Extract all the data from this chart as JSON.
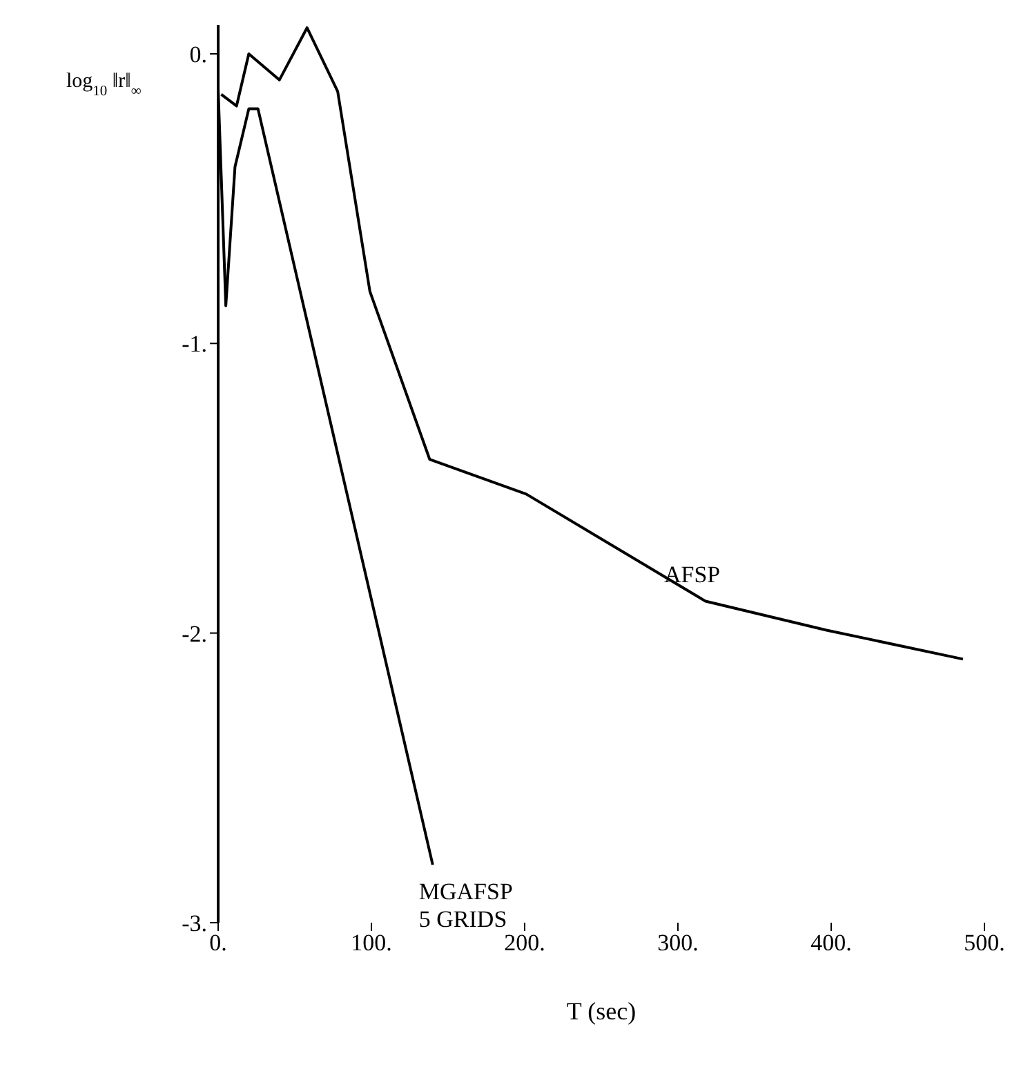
{
  "chart_data": {
    "type": "line",
    "xlabel": "T (sec)",
    "ylabel": "log$_{10}$ ‖r‖$_{∞}$",
    "xlim": [
      0,
      500
    ],
    "xticks": [
      {
        "value": 0,
        "label": "0."
      },
      {
        "value": 100,
        "label": "100."
      },
      {
        "value": 200,
        "label": "200."
      },
      {
        "value": 300,
        "label": "300."
      },
      {
        "value": 400,
        "label": "400."
      },
      {
        "value": 500,
        "label": "500."
      }
    ],
    "ylim": [
      -3,
      0.1
    ],
    "yticks": [
      {
        "value": 0,
        "label": "0."
      },
      {
        "value": -1,
        "label": "-1."
      },
      {
        "value": -2,
        "label": "-2."
      },
      {
        "value": -3,
        "label": "-3."
      }
    ],
    "grid": false,
    "legend": false,
    "marker": "none",
    "line_style": "solid",
    "series": [
      {
        "name": "AFSP",
        "color": "#000000",
        "x": [
          2,
          12,
          20,
          40,
          58,
          78,
          99,
          138,
          201,
          318,
          397,
          486
        ],
        "values": [
          -0.14,
          -0.18,
          0.0,
          -0.09,
          0.09,
          -0.13,
          -0.82,
          -1.4,
          -1.52,
          -1.89,
          -1.99,
          -2.09
        ]
      },
      {
        "name": "MGAFSP\n5 GRIDS",
        "color": "#000000",
        "x": [
          0,
          5,
          11,
          20,
          26,
          140
        ],
        "values": [
          -0.12,
          -0.87,
          -0.39,
          -0.19,
          -0.19,
          -2.8
        ]
      }
    ]
  }
}
